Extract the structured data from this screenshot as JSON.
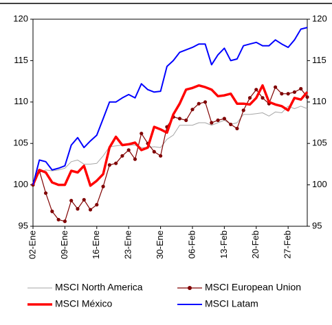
{
  "chart_data": {
    "type": "line",
    "categories": [
      "02-Ene",
      null,
      null,
      null,
      null,
      "09-Ene",
      null,
      null,
      null,
      null,
      "16-Ene",
      null,
      null,
      null,
      null,
      "23-Ene",
      null,
      null,
      null,
      null,
      "30-Ene",
      null,
      null,
      null,
      null,
      "06-Feb",
      null,
      null,
      null,
      null,
      "13-Feb",
      null,
      null,
      null,
      null,
      "20-Feb",
      null,
      null,
      null,
      null,
      "27-Feb",
      null,
      null,
      null
    ],
    "series": [
      {
        "name": "MSCI North America",
        "color": "#a6a6a6",
        "values": [
          100,
          101.5,
          101.8,
          101.7,
          101.8,
          102,
          102.8,
          103,
          102.5,
          102.5,
          102.6,
          103.5,
          104.6,
          104.7,
          104.8,
          104.8,
          104.8,
          104.5,
          104.5,
          104.6,
          104.5,
          105.5,
          106,
          107.2,
          107.2,
          107.2,
          107.5,
          107.5,
          107.2,
          107.5,
          107.8,
          107.3,
          107.5,
          108.5,
          108.5,
          108.6,
          108.7,
          108.3,
          108.8,
          108.7,
          109.5,
          109.2,
          109.5,
          109.2
        ]
      },
      {
        "name": "MSCI European Union",
        "color": "#800000",
        "values": [
          100,
          101.7,
          99,
          96.8,
          95.8,
          95.6,
          98.1,
          97.1,
          98.2,
          97,
          97.6,
          99.8,
          102.4,
          102.6,
          103.5,
          104.2,
          103.1,
          106.2,
          105,
          104,
          103.5,
          107,
          108.2,
          108,
          107.8,
          109.1,
          109.8,
          110,
          107.5,
          107.8,
          108,
          107.3,
          106.8,
          109,
          110.5,
          111.5,
          110.5,
          109.8,
          111.8,
          111,
          111,
          111.2,
          111.6,
          110.6
        ]
      },
      {
        "name": "MSCI México",
        "color": "#ff0000",
        "values": [
          100,
          101.8,
          101.5,
          100.3,
          100,
          100,
          101.7,
          101.5,
          102.3,
          99.9,
          100.5,
          101.3,
          104.5,
          105.8,
          104.8,
          104.9,
          105.1,
          104.2,
          104.5,
          107,
          106.7,
          106.3,
          108.5,
          109.8,
          111.5,
          111.7,
          112,
          111.8,
          111.5,
          110.7,
          110.8,
          111,
          109.8,
          109.8,
          109.7,
          110.5,
          112,
          110,
          109.7,
          109.5,
          109,
          110.5,
          110.3,
          111.2
        ]
      },
      {
        "name": "MSCI Latam",
        "color": "#0000ff",
        "values": [
          100,
          103,
          102.8,
          101.8,
          102,
          102.3,
          104.8,
          105.7,
          104.5,
          105.3,
          106,
          108,
          110,
          110,
          110.5,
          110.9,
          110.5,
          112.2,
          111.5,
          111.2,
          111.3,
          114.3,
          115,
          116,
          116.3,
          116.6,
          117,
          117,
          114.5,
          115.7,
          116.5,
          115,
          115.2,
          116.8,
          117,
          117.2,
          116.8,
          116.8,
          117.5,
          117,
          116.6,
          117.5,
          118.8,
          119
        ]
      }
    ],
    "ylim": [
      95,
      120
    ],
    "yticks": [
      95,
      100,
      105,
      110,
      115,
      120
    ],
    "y2lim": [
      95,
      120
    ],
    "y2ticks": [
      95,
      100,
      105,
      110,
      115,
      120
    ],
    "legend": "bottom"
  }
}
